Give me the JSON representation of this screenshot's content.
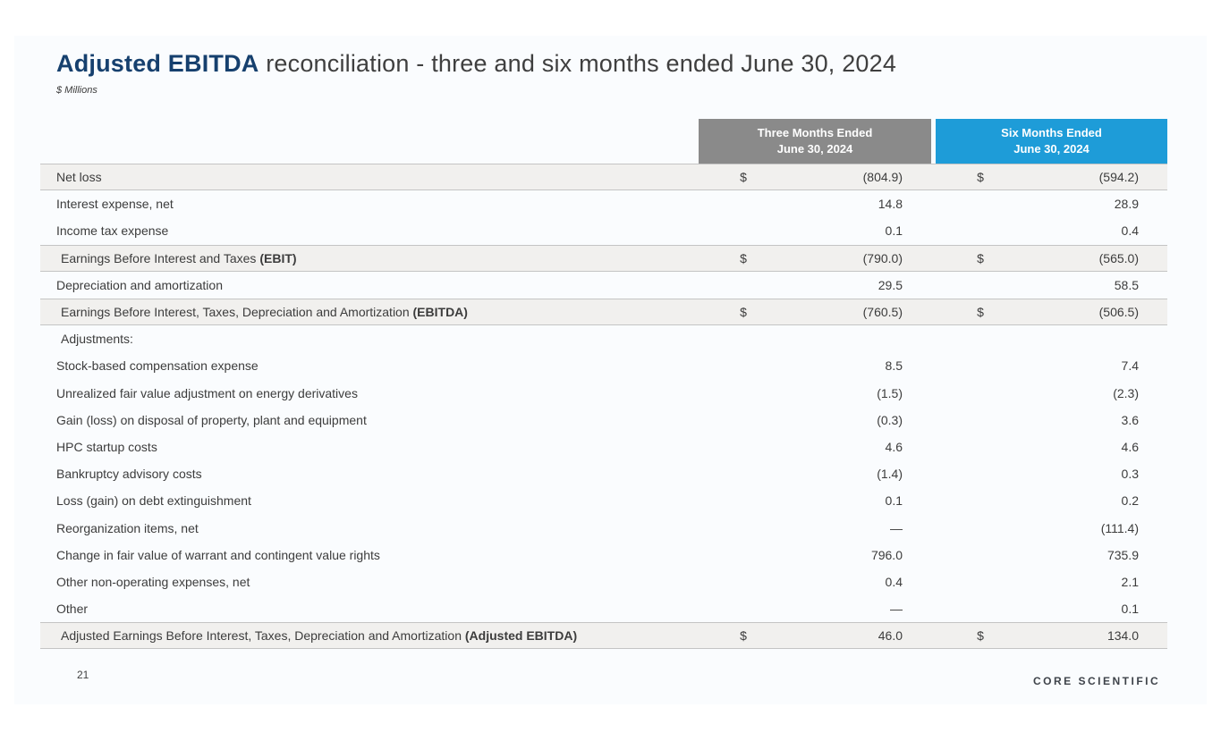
{
  "slide": {
    "title_highlight": "Adjusted EBITDA",
    "title_rest": " reconciliation - three and six months ended June 30, 2024",
    "subtitle": "$ Millions",
    "page_number": "21",
    "logo_text": "CORE SCIENTIFIC"
  },
  "colors": {
    "title_navy": "#16406e",
    "header_gray": "#8a8a8a",
    "header_blue": "#1e9cd8",
    "shaded_row": "#f1f0ee",
    "slide_background": "#fafcfe",
    "rule_line": "#c4c4c4"
  },
  "table": {
    "dollar_symbol": "$",
    "column_headers": [
      {
        "line1": "Three Months Ended",
        "line2": "June 30, 2024"
      },
      {
        "line1": "Six Months Ended",
        "line2": "June 30, 2024"
      }
    ],
    "rows": [
      {
        "label": "Net loss",
        "label_bold": "",
        "dollar": true,
        "shaded": true,
        "ruled": true,
        "indent": false,
        "three": "(804.9)",
        "six": "(594.2)"
      },
      {
        "label": "Interest expense, net",
        "label_bold": "",
        "dollar": false,
        "shaded": false,
        "ruled": false,
        "indent": false,
        "three": "14.8",
        "six": "28.9"
      },
      {
        "label": "Income tax expense",
        "label_bold": "",
        "dollar": false,
        "shaded": false,
        "ruled": false,
        "indent": false,
        "three": "0.1",
        "six": "0.4"
      },
      {
        "label": "Earnings Before Interest and Taxes ",
        "label_bold": "(EBIT)",
        "dollar": true,
        "shaded": true,
        "ruled": true,
        "indent": true,
        "three": "(790.0)",
        "six": "(565.0)"
      },
      {
        "label": "Depreciation and amortization",
        "label_bold": "",
        "dollar": false,
        "shaded": false,
        "ruled": false,
        "indent": false,
        "three": "29.5",
        "six": "58.5"
      },
      {
        "label": "Earnings Before Interest, Taxes, Depreciation and Amortization ",
        "label_bold": "(EBITDA)",
        "dollar": true,
        "shaded": true,
        "ruled": true,
        "indent": true,
        "three": "(760.5)",
        "six": "(506.5)"
      },
      {
        "label": "Adjustments:",
        "label_bold": "",
        "dollar": false,
        "shaded": false,
        "ruled": false,
        "indent": true,
        "three": "",
        "six": ""
      },
      {
        "label": "Stock-based compensation expense",
        "label_bold": "",
        "dollar": false,
        "shaded": false,
        "ruled": false,
        "indent": false,
        "three": "8.5",
        "six": "7.4"
      },
      {
        "label": "Unrealized fair value adjustment on energy derivatives",
        "label_bold": "",
        "dollar": false,
        "shaded": false,
        "ruled": false,
        "indent": false,
        "three": "(1.5)",
        "six": "(2.3)"
      },
      {
        "label": "Gain (loss) on disposal of property, plant and equipment",
        "label_bold": "",
        "dollar": false,
        "shaded": false,
        "ruled": false,
        "indent": false,
        "three": "(0.3)",
        "six": "3.6"
      },
      {
        "label": "HPC startup costs",
        "label_bold": "",
        "dollar": false,
        "shaded": false,
        "ruled": false,
        "indent": false,
        "three": "4.6",
        "six": "4.6"
      },
      {
        "label": "Bankruptcy advisory costs",
        "label_bold": "",
        "dollar": false,
        "shaded": false,
        "ruled": false,
        "indent": false,
        "three": "(1.4)",
        "six": "0.3"
      },
      {
        "label": "Loss (gain) on debt extinguishment",
        "label_bold": "",
        "dollar": false,
        "shaded": false,
        "ruled": false,
        "indent": false,
        "three": "0.1",
        "six": "0.2"
      },
      {
        "label": "Reorganization items, net",
        "label_bold": "",
        "dollar": false,
        "shaded": false,
        "ruled": false,
        "indent": false,
        "three": "—",
        "six": "(111.4)"
      },
      {
        "label": "Change in fair value of warrant and contingent value rights",
        "label_bold": "",
        "dollar": false,
        "shaded": false,
        "ruled": false,
        "indent": false,
        "three": "796.0",
        "six": "735.9"
      },
      {
        "label": "Other non-operating expenses, net",
        "label_bold": "",
        "dollar": false,
        "shaded": false,
        "ruled": false,
        "indent": false,
        "three": "0.4",
        "six": "2.1"
      },
      {
        "label": "Other",
        "label_bold": "",
        "dollar": false,
        "shaded": false,
        "ruled": false,
        "indent": false,
        "three": "—",
        "six": "0.1"
      },
      {
        "label": "Adjusted Earnings Before Interest, Taxes, Depreciation and Amortization ",
        "label_bold": "(Adjusted EBITDA)",
        "dollar": true,
        "shaded": true,
        "ruled": true,
        "indent": true,
        "three": "46.0",
        "six": "134.0"
      }
    ]
  }
}
